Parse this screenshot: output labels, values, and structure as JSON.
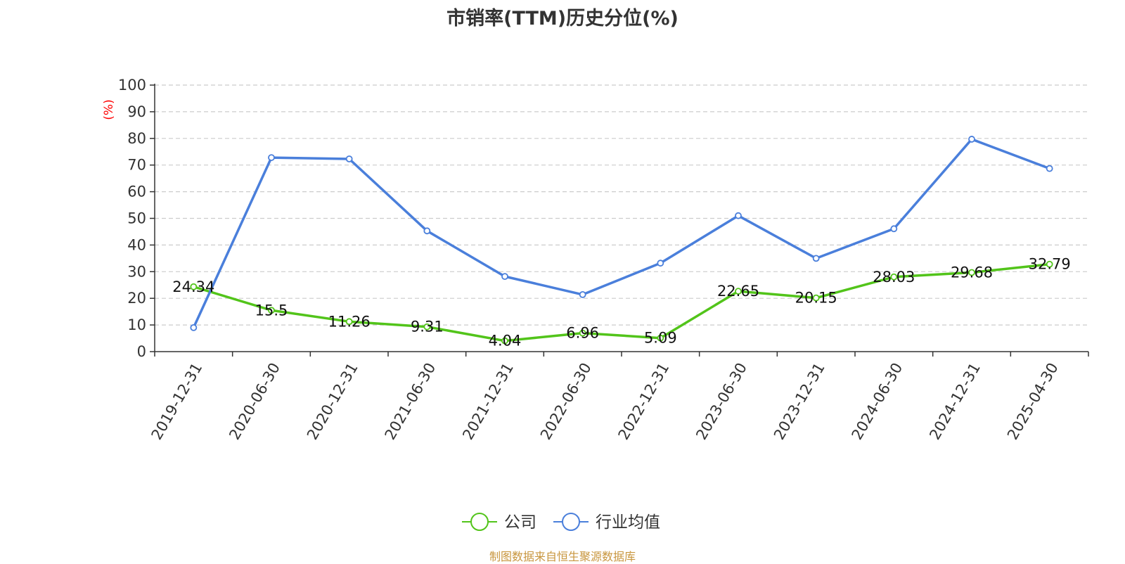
{
  "chart_data": {
    "type": "line",
    "title": "市销率(TTM)历史分位(%)",
    "ylabel": "(%)",
    "xlabel": "",
    "ylim": [
      0,
      100
    ],
    "yticks": [
      0,
      10,
      20,
      30,
      40,
      50,
      60,
      70,
      80,
      90,
      100
    ],
    "grid": true,
    "legend_position": "bottom",
    "categories": [
      "2019-12-31",
      "2020-06-30",
      "2020-12-31",
      "2021-06-30",
      "2021-12-31",
      "2022-06-30",
      "2022-12-31",
      "2023-06-30",
      "2023-12-31",
      "2024-06-30",
      "2024-12-31",
      "2025-04-30"
    ],
    "series": [
      {
        "name": "公司",
        "color": "#52c41a",
        "values": [
          24.34,
          15.5,
          11.26,
          9.31,
          4.04,
          6.96,
          5.09,
          22.65,
          20.15,
          28.03,
          29.68,
          32.79
        ],
        "data_labels": true
      },
      {
        "name": "行业均值",
        "color": "#4a7fdb",
        "values": [
          9.0,
          72.8,
          72.3,
          45.3,
          28.2,
          21.4,
          33.2,
          51.0,
          35.0,
          46.1,
          79.7,
          68.7
        ],
        "data_labels": false
      }
    ]
  },
  "source": {
    "text": "制图数据来自恒生聚源数据库",
    "color": "#c8963e"
  }
}
